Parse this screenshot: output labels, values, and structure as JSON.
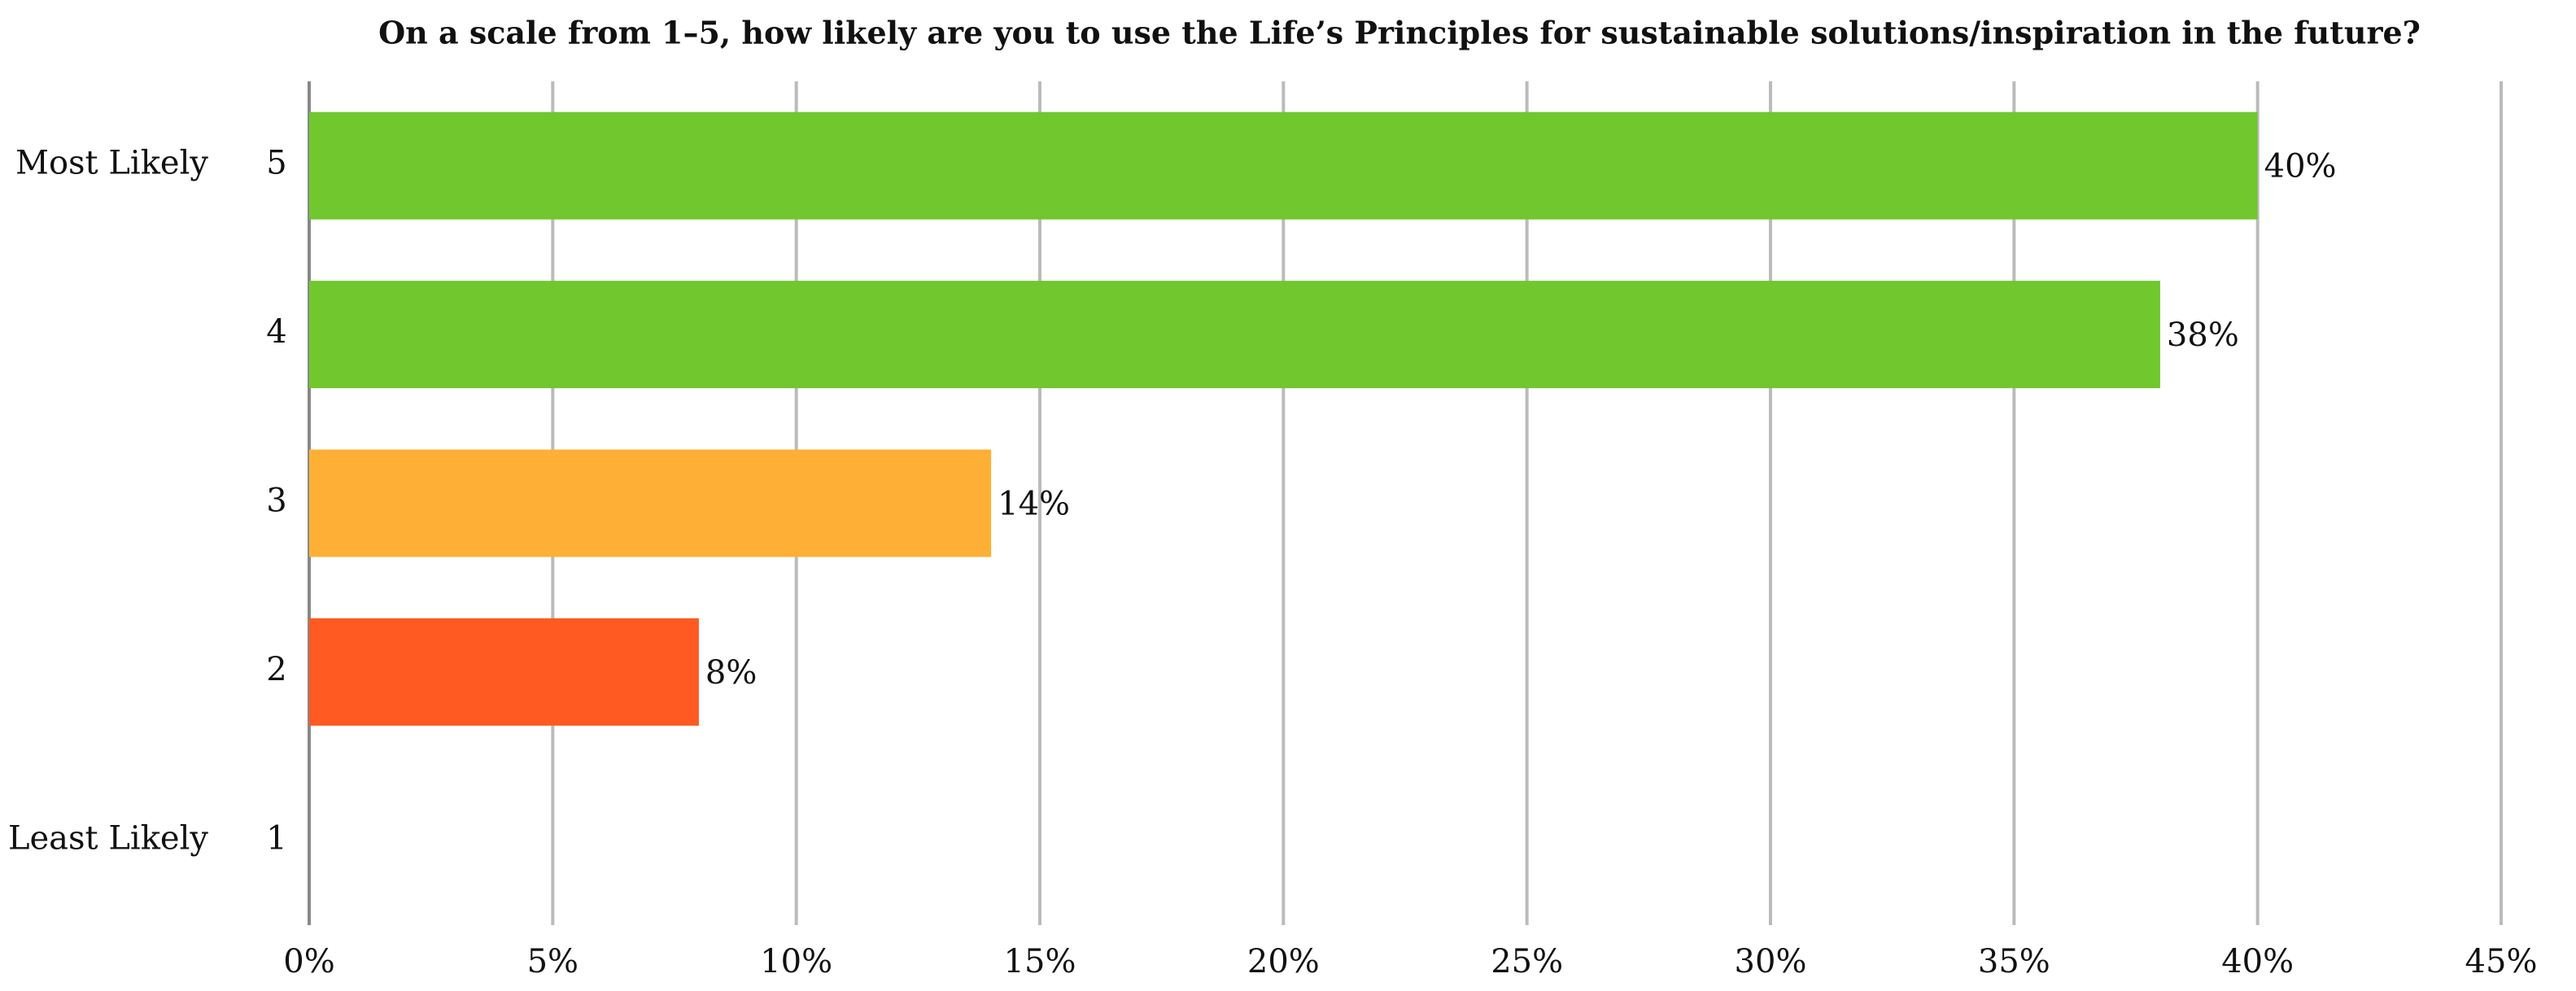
{
  "chart_data": {
    "type": "hbar",
    "title": "On a scale from 1–5, how likely are you to use the Life’s Principles for sustainable solutions/inspiration in the future?",
    "categories": [
      "5",
      "4",
      "3",
      "2",
      "1"
    ],
    "category_notes": [
      "Most Likely",
      null,
      null,
      null,
      "Least Likely"
    ],
    "values": [
      40,
      38,
      14,
      8,
      0
    ],
    "value_labels": [
      "40%",
      "38%",
      "14%",
      "8%",
      null
    ],
    "colors": [
      "#70c72e",
      "#70c72e",
      "#fdb035",
      "#fe5a22",
      null
    ],
    "xlim": [
      0,
      45
    ],
    "xticks": [
      {
        "value": 0,
        "label": "0%"
      },
      {
        "value": 5,
        "label": "5%"
      },
      {
        "value": 10,
        "label": "10%"
      },
      {
        "value": 15,
        "label": "15%"
      },
      {
        "value": 20,
        "label": "20%"
      },
      {
        "value": 25,
        "label": "25%"
      },
      {
        "value": 30,
        "label": "30%"
      },
      {
        "value": 35,
        "label": "35%"
      },
      {
        "value": 40,
        "label": "40%"
      },
      {
        "value": 45,
        "label": "45%"
      }
    ],
    "grid": true
  }
}
